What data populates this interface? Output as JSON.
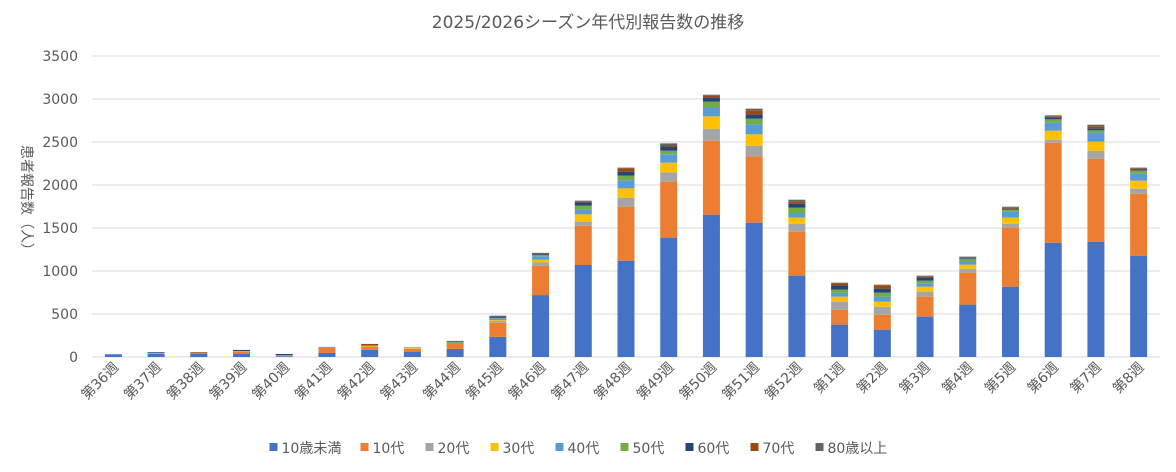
{
  "chart_data": {
    "type": "bar",
    "stacked": true,
    "title": "2025/2026シーズン年代別報告数の推移",
    "xlabel": "",
    "ylabel": "患者報告数（人）",
    "ylim": [
      0,
      3500
    ],
    "yticks": [
      0,
      500,
      1000,
      1500,
      2000,
      2500,
      3000,
      3500
    ],
    "grid": true,
    "legend": "bottom",
    "categories": [
      "第36週",
      "第37週",
      "第38週",
      "第39週",
      "第40週",
      "第41週",
      "第42週",
      "第43週",
      "第44週",
      "第45週",
      "第46週",
      "第47週",
      "第48週",
      "第49週",
      "第50週",
      "第51週",
      "第52週",
      "第1週",
      "第2週",
      "第3週",
      "第4週",
      "第5週",
      "第6週",
      "第7週",
      "第8週"
    ],
    "series": [
      {
        "name": "10歳未満",
        "color": "#4472C4",
        "values": [
          23,
          35,
          35,
          35,
          8,
          47,
          82,
          58,
          94,
          234,
          720,
          1070,
          1120,
          1388,
          1655,
          1562,
          946,
          376,
          318,
          469,
          609,
          818,
          1329,
          1341,
          1178
        ]
      },
      {
        "name": "10代",
        "color": "#ED7D31",
        "values": [
          0,
          8,
          12,
          27,
          4,
          62,
          39,
          36,
          70,
          164,
          340,
          457,
          628,
          651,
          860,
          771,
          511,
          174,
          174,
          233,
          372,
          686,
          1163,
          965,
          721
        ]
      },
      {
        "name": "20代",
        "color": "#A5A5A5",
        "values": [
          0,
          4,
          4,
          4,
          0,
          4,
          0,
          4,
          0,
          20,
          40,
          47,
          105,
          108,
          140,
          124,
          93,
          93,
          93,
          58,
          46,
          46,
          35,
          93,
          58
        ]
      },
      {
        "name": "30代",
        "color": "#FFC000",
        "values": [
          0,
          0,
          0,
          0,
          0,
          0,
          4,
          11,
          0,
          11,
          30,
          85,
          108,
          113,
          143,
          132,
          70,
          59,
          58,
          58,
          47,
          70,
          105,
          105,
          93
        ]
      },
      {
        "name": "40代",
        "color": "#5B9BD5",
        "values": [
          12,
          4,
          0,
          4,
          4,
          0,
          0,
          4,
          4,
          20,
          42,
          54,
          93,
          97,
          97,
          116,
          54,
          46,
          59,
          39,
          42,
          70,
          93,
          105,
          82
        ]
      },
      {
        "name": "50代",
        "color": "#70AD47",
        "values": [
          0,
          0,
          0,
          0,
          7,
          0,
          8,
          4,
          11,
          4,
          16,
          47,
          55,
          42,
          74,
          66,
          62,
          35,
          46,
          31,
          27,
          23,
          39,
          27,
          35
        ]
      },
      {
        "name": "60代",
        "color": "#264478",
        "values": [
          0,
          7,
          0,
          12,
          12,
          4,
          4,
          0,
          8,
          8,
          15,
          39,
          46,
          51,
          47,
          51,
          47,
          50,
          47,
          35,
          8,
          12,
          15,
          23,
          7
        ]
      },
      {
        "name": "70代",
        "color": "#9E480E",
        "values": [
          0,
          0,
          7,
          0,
          0,
          0,
          15,
          0,
          0,
          4,
          5,
          11,
          39,
          15,
          23,
          46,
          23,
          26,
          40,
          11,
          8,
          11,
          15,
          23,
          16
        ]
      },
      {
        "name": "80歳以上",
        "color": "#636363",
        "values": [
          0,
          0,
          0,
          0,
          0,
          0,
          0,
          0,
          0,
          15,
          3,
          8,
          8,
          19,
          11,
          20,
          23,
          5,
          6,
          12,
          8,
          12,
          16,
          19,
          12
        ]
      }
    ]
  }
}
